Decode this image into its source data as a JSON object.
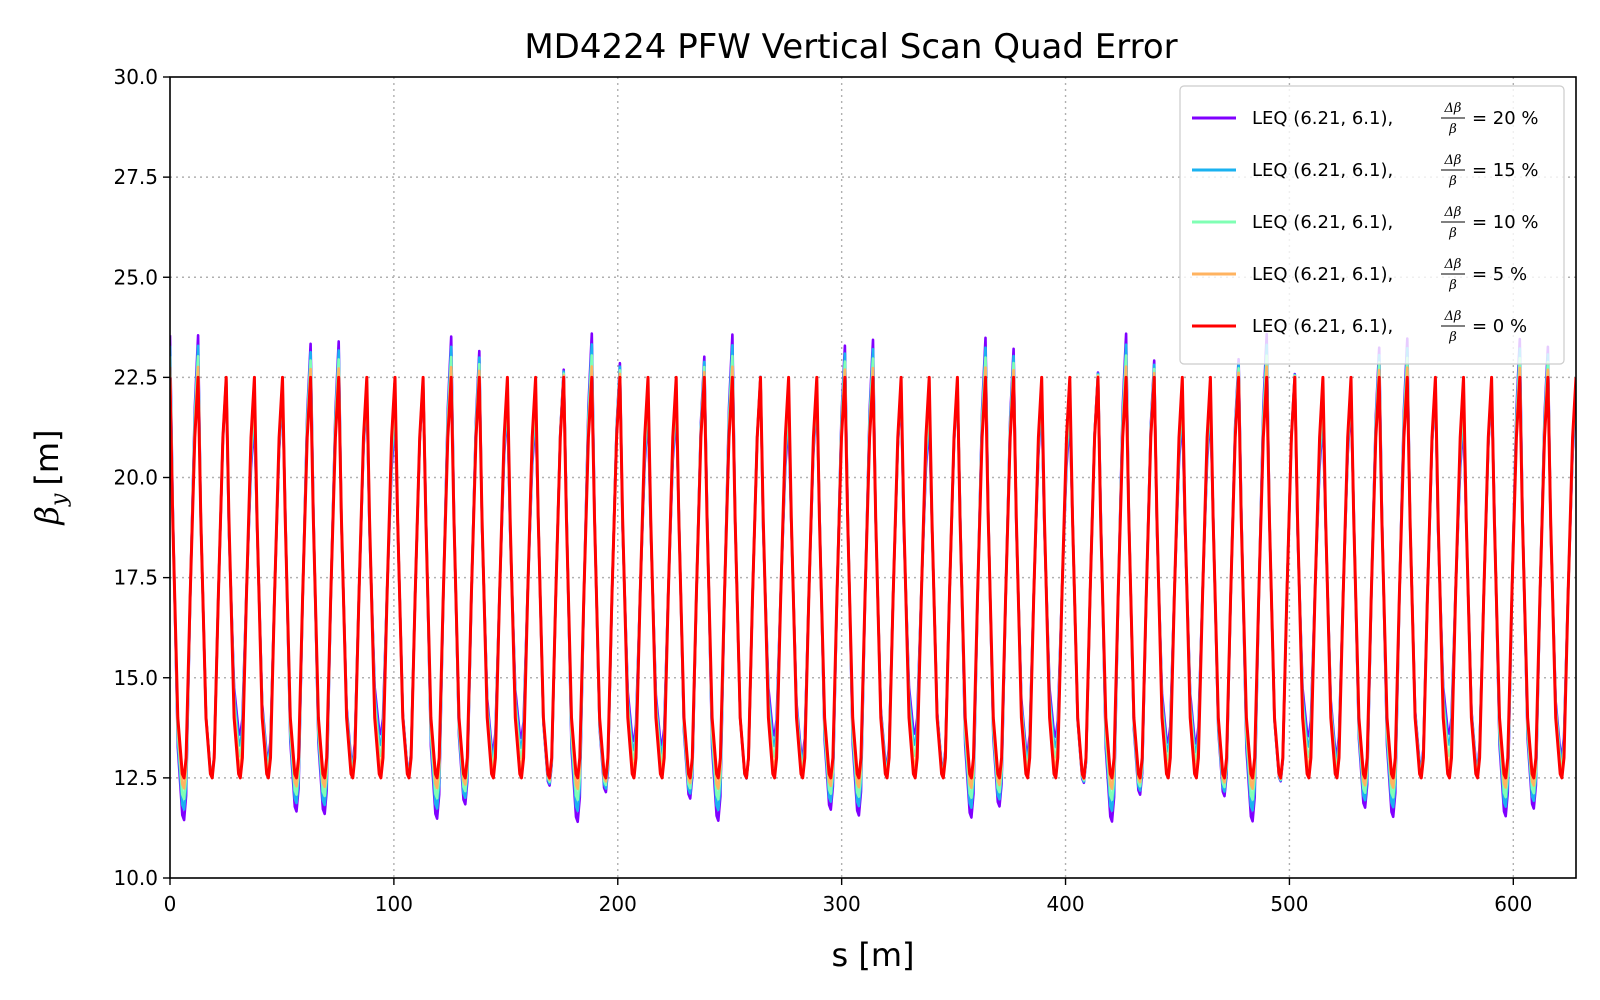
{
  "chart_data": {
    "type": "line",
    "title": "MD4224 PFW Vertical Scan Quad Error",
    "xlabel": "s [m]",
    "ylabel_symbol": "β",
    "ylabel_subscript": "y",
    "ylabel_unit": "[m]",
    "xlim": [
      0,
      628
    ],
    "ylim": [
      10.0,
      30.0
    ],
    "xticks": [
      0,
      100,
      200,
      300,
      400,
      500,
      600
    ],
    "yticks": [
      "10.0",
      "12.5",
      "15.0",
      "17.5",
      "20.0",
      "22.5",
      "25.0",
      "27.5",
      "30.0"
    ],
    "grid": true,
    "legend_position": "top-right",
    "cell_length": 12.56,
    "n_cells": 50,
    "cell_profile": {
      "s": [
        0,
        1.2,
        3.5,
        5.5,
        6.28,
        7.2,
        9.0,
        11.06,
        12.56
      ],
      "beta": [
        22.5,
        19.0,
        14.0,
        12.6,
        12.5,
        13.0,
        17.0,
        21.0,
        22.5
      ]
    },
    "series": [
      {
        "name_prefix": "LEQ (6.21, 6.1),",
        "frac_num": "Δβ",
        "frac_den": "β",
        "name_suffix": "= 20 %",
        "color": "#8000ff",
        "amplitude": 0.2
      },
      {
        "name_prefix": "LEQ (6.21, 6.1),",
        "frac_num": "Δβ",
        "frac_den": "β",
        "name_suffix": "= 15 %",
        "color": "#1ab2f0",
        "amplitude": 0.15
      },
      {
        "name_prefix": "LEQ (6.21, 6.1),",
        "frac_num": "Δβ",
        "frac_den": "β",
        "name_suffix": "= 10 %",
        "color": "#80ffb4",
        "amplitude": 0.1
      },
      {
        "name_prefix": "LEQ (6.21, 6.1),",
        "frac_num": "Δβ",
        "frac_den": "β",
        "name_suffix": "= 5 %",
        "color": "#ffb360",
        "amplitude": 0.05
      },
      {
        "name_prefix": "LEQ (6.21, 6.1),",
        "frac_num": "Δβ",
        "frac_den": "β",
        "name_suffix": "= 0 %",
        "color": "#ff0000",
        "amplitude": 0.0
      }
    ]
  }
}
